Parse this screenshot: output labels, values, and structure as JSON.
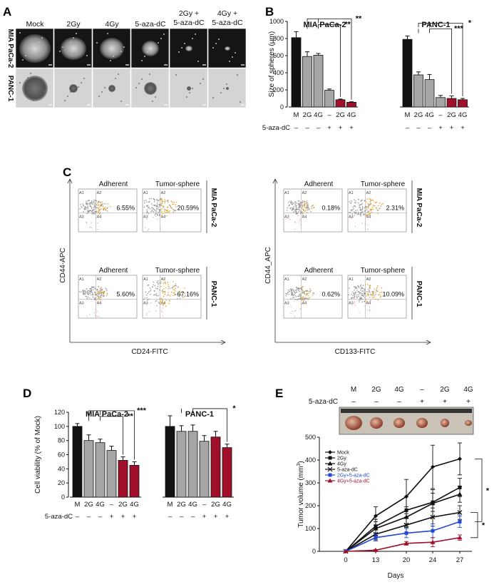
{
  "colors": {
    "black": "#111111",
    "gray": "#a6a6a6",
    "red": "#a0102a",
    "blue": "#2348d6",
    "orange": "#f2a51c",
    "scatter_gray": "#9a9a9a"
  },
  "panel_A": {
    "label": "A",
    "columns": [
      "Mock",
      "2Gy",
      "4Gy",
      "5-aza-dC",
      "2Gy +\n5-aza-dC",
      "4Gy +\n5-aza-dC"
    ],
    "rows": [
      "MIA PaCa-2",
      "PANC-1"
    ]
  },
  "panel_B": {
    "label": "B",
    "treatment_label": "5-aza-dC",
    "chart_data": {
      "type": "bar",
      "ylabel": "Size of spheres (μm)",
      "ylim": [
        0,
        1000
      ],
      "yticks": [
        0,
        200,
        400,
        600,
        800,
        1000
      ],
      "categories": [
        "M",
        "2G",
        "4G",
        "–",
        "2G",
        "4G"
      ],
      "aza": [
        "–",
        "–",
        "–",
        "+",
        "+",
        "+"
      ],
      "groups": [
        {
          "name": "MIA PaCa-2",
          "values": [
            810,
            590,
            605,
            195,
            85,
            55
          ],
          "errors": [
            70,
            55,
            20,
            15,
            8,
            6
          ],
          "colors": [
            "black",
            "gray",
            "gray",
            "gray",
            "red",
            "red"
          ],
          "significance": [
            "**",
            "**"
          ]
        },
        {
          "name": "PANC-1",
          "values": [
            790,
            375,
            320,
            110,
            100,
            85
          ],
          "errors": [
            40,
            35,
            60,
            25,
            30,
            15
          ],
          "colors": [
            "black",
            "gray",
            "gray",
            "gray",
            "red",
            "red"
          ],
          "significance": [
            "***",
            "*"
          ]
        }
      ]
    }
  },
  "panel_C": {
    "label": "C",
    "left": {
      "ylabel": "CD44-APC",
      "xlabel": "CD24-FITC",
      "rows": [
        {
          "name": "MIA PaCa-2",
          "adherent": "6.55%",
          "sphere": "20.59%"
        },
        {
          "name": "PANC-1",
          "adherent": "5.60%",
          "sphere": "67.16%"
        }
      ]
    },
    "right": {
      "ylabel": "CD44_APC",
      "xlabel": "CD133-FITC",
      "rows": [
        {
          "name": "MIA PaCa-2",
          "adherent": "0.18%",
          "sphere": "2.31%"
        },
        {
          "name": "PANC-1",
          "adherent": "0.62%",
          "sphere": "10.09%"
        }
      ]
    },
    "col_adherent": "Adherent",
    "col_sphere": "Tumor-sphere",
    "quadrants": [
      "A1",
      "A2",
      "A3",
      "A4"
    ]
  },
  "panel_D": {
    "label": "D",
    "treatment_label": "5-aza-dC",
    "chart_data": {
      "type": "bar",
      "ylabel": "Cell viability (% of Mock)",
      "ylim": [
        0,
        120
      ],
      "yticks": [
        0,
        20,
        40,
        60,
        80,
        100,
        120
      ],
      "categories": [
        "M",
        "2G",
        "4G",
        "–",
        "2G",
        "4G"
      ],
      "aza": [
        "–",
        "–",
        "–",
        "+",
        "+",
        "+"
      ],
      "groups": [
        {
          "name": "MIA PaCa-2",
          "values": [
            100,
            80,
            77,
            66,
            52,
            45
          ],
          "errors": [
            4,
            8,
            5,
            6,
            5,
            5
          ],
          "colors": [
            "black",
            "gray",
            "gray",
            "gray",
            "red",
            "red"
          ],
          "significance": [
            "**",
            "***"
          ]
        },
        {
          "name": "PANC-1",
          "values": [
            100,
            93,
            93,
            79,
            85,
            70
          ],
          "errors": [
            15,
            8,
            9,
            8,
            8,
            5
          ],
          "colors": [
            "black",
            "gray",
            "gray",
            "gray",
            "red",
            "red"
          ],
          "significance": [
            "*"
          ]
        }
      ]
    }
  },
  "panel_E": {
    "label": "E",
    "tumor_header": {
      "cols": [
        "M",
        "2G",
        "4G",
        "–",
        "2G",
        "4G"
      ],
      "aza": [
        "–",
        "–",
        "–",
        "+",
        "+",
        "+"
      ],
      "treatment_label": "5-aza-dC"
    },
    "chart_data": {
      "type": "line",
      "xlabel": "Days",
      "ylabel": "Tumor volume (mm3)",
      "x": [
        0,
        13,
        20,
        24,
        27
      ],
      "ylim": [
        0,
        500
      ],
      "yticks": [
        0,
        100,
        200,
        300,
        400,
        500
      ],
      "series": [
        {
          "name": "Mock",
          "values": [
            0,
            155,
            240,
            370,
            405
          ],
          "errors": [
            0,
            40,
            75,
            95,
            70
          ],
          "color": "black",
          "marker": "diamond"
        },
        {
          "name": "2Gy",
          "values": [
            0,
            110,
            180,
            215,
            280
          ],
          "errors": [
            0,
            30,
            60,
            40,
            40
          ],
          "color": "black",
          "marker": "square"
        },
        {
          "name": "4Gy",
          "values": [
            0,
            100,
            150,
            210,
            250
          ],
          "errors": [
            0,
            30,
            45,
            60,
            35
          ],
          "color": "black",
          "marker": "triangle"
        },
        {
          "name": "5-aza-dC",
          "values": [
            0,
            75,
            115,
            150,
            170
          ],
          "errors": [
            0,
            25,
            35,
            40,
            30
          ],
          "color": "black",
          "marker": "cross"
        },
        {
          "name": "2Gy+5-aza-dC",
          "values": [
            0,
            60,
            80,
            90,
            130
          ],
          "errors": [
            0,
            15,
            20,
            30,
            25
          ],
          "color": "blue",
          "marker": "square"
        },
        {
          "name": "4Gy+5-aza-dC",
          "values": [
            0,
            5,
            35,
            40,
            60
          ],
          "errors": [
            0,
            3,
            8,
            20,
            12
          ],
          "color": "red",
          "marker": "triangle"
        }
      ],
      "significance": [
        "*",
        "*"
      ]
    }
  }
}
